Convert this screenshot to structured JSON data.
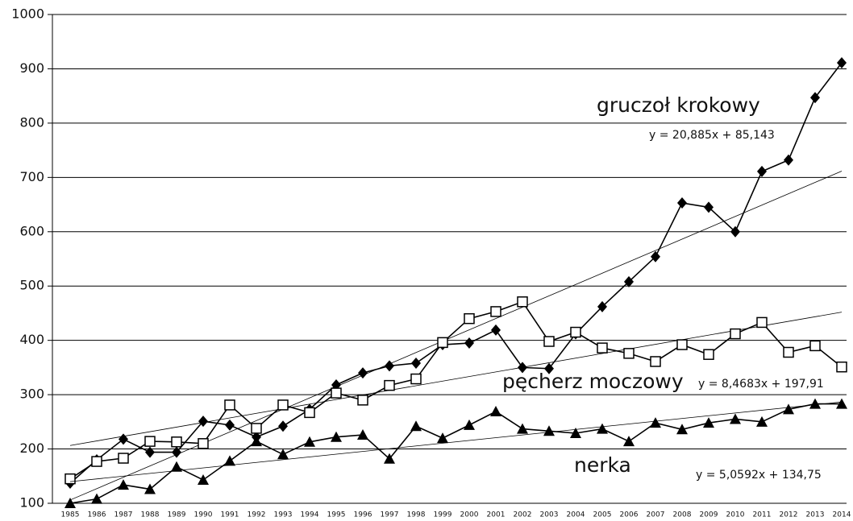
{
  "chart_data": {
    "type": "line",
    "categories": [
      "1985",
      "1986",
      "1987",
      "1988",
      "1989",
      "1990",
      "1991",
      "1992",
      "1993",
      "1994",
      "1995",
      "1996",
      "1997",
      "1998",
      "1999",
      "2000",
      "2001",
      "2002",
      "2003",
      "2004",
      "2005",
      "2006",
      "2007",
      "2008",
      "2009",
      "2010",
      "2011",
      "2012",
      "2013",
      "2014"
    ],
    "series": [
      {
        "name": "gruczoł krokowy",
        "color": "#000000",
        "marker": "diamond",
        "values": [
          137,
          180,
          218,
          194,
          194,
          251,
          244,
          222,
          242,
          273,
          318,
          340,
          353,
          358,
          392,
          395,
          419,
          350,
          348,
          412,
          462,
          508,
          554,
          653,
          645,
          600,
          711,
          732,
          847,
          911
        ],
        "trendline": {
          "slope": 20.885,
          "intercept": 85.143,
          "label": "y = 20,885x + 85,143"
        }
      },
      {
        "name": "pęcherz moczowy",
        "color": "#000000",
        "marker": "square",
        "values": [
          145,
          177,
          183,
          214,
          213,
          210,
          281,
          238,
          281,
          267,
          303,
          290,
          317,
          329,
          396,
          440,
          453,
          471,
          398,
          415,
          386,
          376,
          361,
          392,
          374,
          412,
          433,
          378,
          390,
          351
        ],
        "trendline": {
          "slope": 8.4683,
          "intercept": 197.91,
          "label": "y = 8,4683x + 197,91"
        }
      },
      {
        "name": "nerka",
        "color": "#000000",
        "marker": "triangle",
        "values": [
          100,
          108,
          134,
          126,
          167,
          143,
          178,
          214,
          190,
          213,
          222,
          226,
          182,
          242,
          220,
          244,
          269,
          237,
          233,
          229,
          237,
          214,
          248,
          236,
          248,
          255,
          250,
          273,
          283,
          283
        ],
        "trendline": {
          "slope": 5.0592,
          "intercept": 134.75,
          "label": "y = 5,0592x + 134,75"
        }
      }
    ],
    "ylim": [
      100,
      1000
    ],
    "yticks": [
      100,
      200,
      300,
      400,
      500,
      600,
      700,
      800,
      900,
      1000
    ],
    "grid": true
  }
}
